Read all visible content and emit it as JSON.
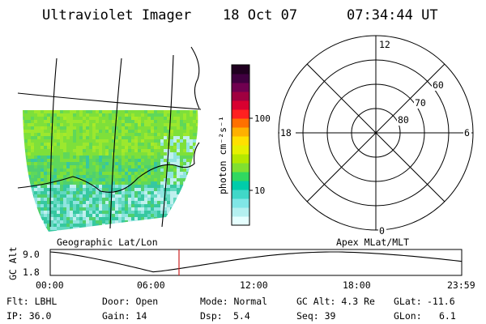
{
  "header": {
    "instrument": "Ultraviolet Imager",
    "date": "18 Oct 07",
    "time": "07:34:44 UT"
  },
  "panels": {
    "left_caption": "Geographic Lat/Lon",
    "right_caption": "Apex MLat/MLT"
  },
  "colorbar": {
    "label": "photon cm⁻²s⁻¹",
    "tick_100": "100",
    "tick_10": "10",
    "colors": [
      "#e6ffff",
      "#b4f0f0",
      "#80e6e6",
      "#40d8c8",
      "#00ccaa",
      "#30d860",
      "#80e030",
      "#b4e800",
      "#e6f000",
      "#ffe000",
      "#ffb000",
      "#ff7000",
      "#ff2020",
      "#d80030",
      "#a00040",
      "#700050",
      "#400040",
      "#200020"
    ]
  },
  "polar": {
    "mlt_12": "12",
    "mlt_18": "18",
    "mlt_6": "6",
    "mlt_0": "0",
    "lat_60": "60",
    "lat_70": "70",
    "lat_80": "80"
  },
  "altitude_plot": {
    "ylabel": "GC Alt",
    "ytick_top": "9.0",
    "ytick_bottom": "1.8",
    "xticks": [
      "00:00",
      "06:00",
      "12:00",
      "18:00",
      "23:59"
    ],
    "curve_color": "#000000",
    "marker_color": "#cc2222"
  },
  "info": {
    "flt": "Flt: LBHL",
    "ip": "IP: 36.0",
    "door": "Door: Open",
    "gain": "Gain: 14",
    "mode": "Mode: Normal",
    "dsp_label": "Dsp:",
    "dsp_value": "5.4",
    "gcalt": "GC Alt: 4.3 Re",
    "seq": "Seq: 39",
    "glat_label": "GLat:",
    "glat_value": "-11.6",
    "glon_label": "GLon:",
    "glon_value": "6.1"
  },
  "image_palette": [
    "#7ee03a",
    "#5fd85a",
    "#9ce82e",
    "#4fd06e",
    "#36c8a0",
    "#62d8c0",
    "#90e4e0",
    "#bff0ee",
    "#2ec8b8",
    "#a8ea28"
  ]
}
